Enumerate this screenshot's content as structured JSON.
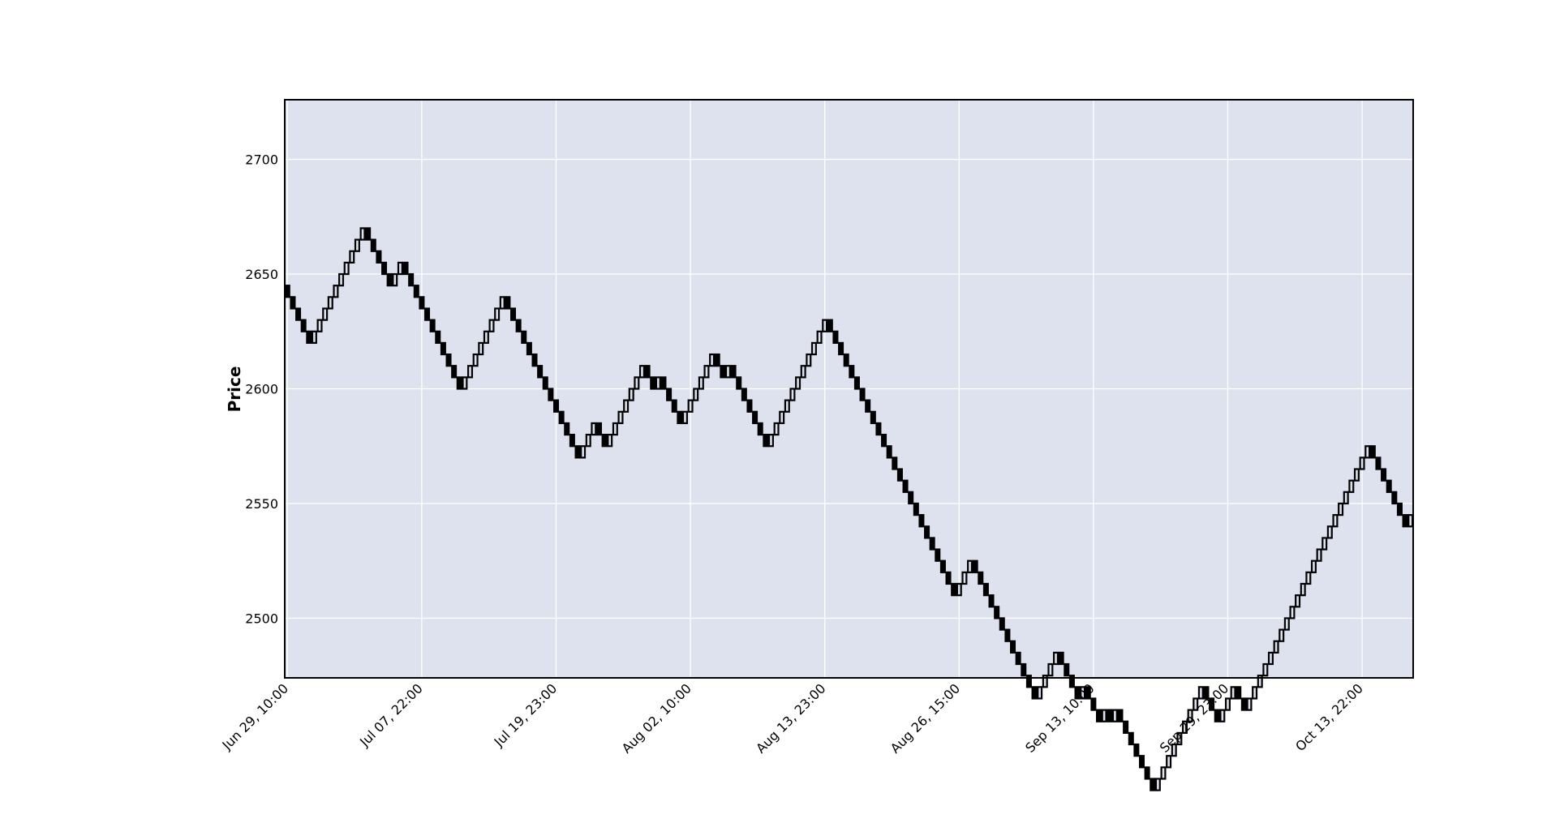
{
  "chart_data": {
    "type": "renko",
    "title": "",
    "xlabel": "",
    "ylabel": "Price",
    "ylim": [
      2474,
      2726
    ],
    "brick_size": 5,
    "y_ticks": [
      2500,
      2550,
      2600,
      2650,
      2700
    ],
    "x_tick_labels": [
      "Jun 29, 10:00",
      "Jul 07, 22:00",
      "Jul 19, 23:00",
      "Aug 02, 10:00",
      "Aug 13, 23:00",
      "Aug 26, 15:00",
      "Sep 13, 10:00",
      "Sep 29, 23:00",
      "Oct 13, 22:00"
    ],
    "bricks_per_tick": 25,
    "grid": true,
    "colors": {
      "background": "#dde2ee",
      "grid": "#ffffff",
      "up_fill": "#dde2ee",
      "down_fill": "#000000",
      "edge": "#000000"
    },
    "start_price": 2645,
    "moves": [
      -5,
      -5,
      -5,
      -5,
      -5,
      5,
      5,
      5,
      5,
      5,
      5,
      5,
      5,
      5,
      5,
      -5,
      -5,
      -5,
      -5,
      -5,
      5,
      5,
      -5,
      -5,
      -5,
      -5,
      -5,
      -5,
      -5,
      -5,
      -5,
      -5,
      -5,
      5,
      5,
      5,
      5,
      5,
      5,
      5,
      5,
      -5,
      -5,
      -5,
      -5,
      -5,
      -5,
      -5,
      -5,
      -5,
      -5,
      -5,
      -5,
      -5,
      -5,
      5,
      5,
      5,
      -5,
      -5,
      5,
      5,
      5,
      5,
      5,
      5,
      5,
      -5,
      -5,
      5,
      -5,
      -5,
      -5,
      -5,
      5,
      5,
      5,
      5,
      5,
      5,
      -5,
      -5,
      5,
      -5,
      -5,
      -5,
      -5,
      -5,
      -5,
      -5,
      5,
      5,
      5,
      5,
      5,
      5,
      5,
      5,
      5,
      5,
      5,
      -5,
      -5,
      -5,
      -5,
      -5,
      -5,
      -5,
      -5,
      -5,
      -5,
      -5,
      -5,
      -5,
      -5,
      -5,
      -5,
      -5,
      -5,
      -5,
      -5,
      -5,
      -5,
      -5,
      -5,
      5,
      5,
      5,
      -5,
      -5,
      -5,
      -5,
      -5,
      -5,
      -5,
      -5,
      -5,
      -5,
      -5,
      -5,
      5,
      5,
      5,
      5,
      -5,
      -5,
      -5,
      -5,
      5,
      -5,
      -5,
      -5,
      5,
      -5,
      5,
      -5,
      -5,
      -5,
      -5,
      -5,
      -5,
      -5,
      5,
      5,
      5,
      5,
      5,
      5,
      5,
      5,
      5,
      -5,
      -5,
      -5,
      5,
      5,
      5,
      -5,
      -5,
      5,
      5,
      5,
      5,
      5,
      5,
      5,
      5,
      5,
      5,
      5,
      5,
      5,
      5,
      5,
      5,
      5,
      5,
      5,
      5,
      5,
      5,
      5,
      -5,
      -5,
      -5,
      -5,
      -5,
      -5,
      -5,
      5
    ]
  }
}
